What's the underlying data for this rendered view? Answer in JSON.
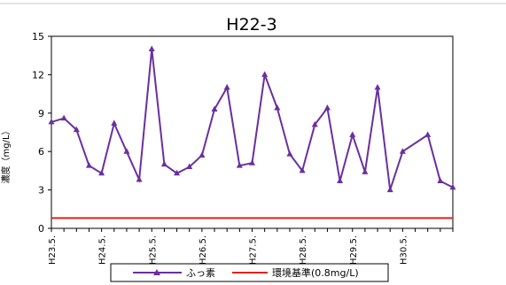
{
  "chart_data": {
    "type": "line",
    "title": "H22-3",
    "xlabel": "",
    "ylabel": "濃度（mg/L）",
    "ylim": [
      0,
      15
    ],
    "yticks": [
      0,
      3,
      6,
      9,
      12,
      15
    ],
    "xticks": [
      "H23.5.",
      "H24.5.",
      "H25.5.",
      "H26.5.",
      "H27.5.",
      "H28.5.",
      "H29.5.",
      "H30.5."
    ],
    "grid": false,
    "legend": "bottom",
    "series": [
      {
        "name": "ふっ素",
        "color": "#6a2fa0",
        "marker": "triangle",
        "values": [
          8.3,
          8.6,
          7.7,
          4.9,
          4.3,
          8.2,
          6.0,
          3.8,
          14.0,
          5.0,
          4.3,
          4.8,
          5.7,
          9.3,
          11.0,
          4.9,
          5.1,
          12.0,
          9.4,
          5.8,
          4.5,
          8.1,
          9.4,
          3.7,
          7.3,
          4.4,
          11.0,
          3.0,
          6.0,
          7.3,
          3.7,
          3.2
        ],
        "x_index": [
          0,
          1,
          2,
          3,
          4,
          5,
          6,
          7,
          8,
          9,
          10,
          11,
          12,
          13,
          14,
          15,
          16,
          17,
          18,
          19,
          20,
          21,
          22,
          23,
          24,
          25,
          26,
          27,
          28,
          30,
          31,
          32
        ]
      },
      {
        "name": "環境基準(0.8mg/L)",
        "color": "#e2231a",
        "marker": "none",
        "constant": 0.8
      }
    ]
  }
}
